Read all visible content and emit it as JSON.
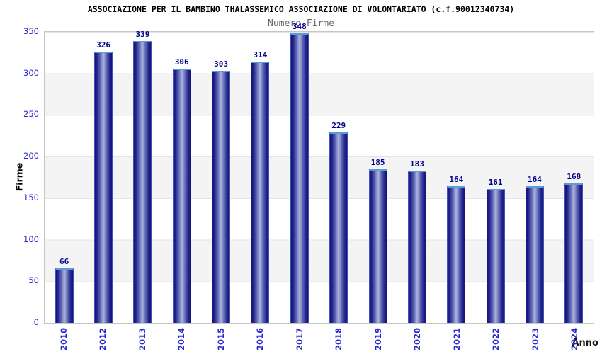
{
  "header": {
    "title": "ASSOCIAZIONE PER IL BAMBINO THALASSEMICO ASSOCIAZIONE DI VOLONTARIATO (c.f.90012340734)",
    "subtitle": "Numero Firme"
  },
  "chart_data": {
    "type": "bar",
    "title": "ASSOCIAZIONE PER IL BAMBINO THALASSEMICO ASSOCIAZIONE DI VOLONTARIATO (c.f.90012340734)",
    "subtitle": "Numero Firme",
    "categories": [
      "2010",
      "2012",
      "2013",
      "2014",
      "2015",
      "2016",
      "2017",
      "2018",
      "2019",
      "2020",
      "2021",
      "2022",
      "2023",
      "2024"
    ],
    "values": [
      66,
      326,
      339,
      306,
      303,
      314,
      348,
      229,
      185,
      183,
      164,
      161,
      164,
      168
    ],
    "xlabel": "Anno",
    "ylabel": "Firme",
    "ylim": [
      0,
      350
    ],
    "yticks": [
      0,
      50,
      100,
      150,
      200,
      250,
      300,
      350
    ],
    "grid": "horizontal-bands-alternating",
    "legend": "none",
    "colors": {
      "bar_edge": "#14147a",
      "bar_center": "#a7aedd",
      "bar_top_cap": "#5d9bd3",
      "bar_side_border": "#3a56b8",
      "value_label": "#00008c",
      "tick_label_blue": "#2a2ace",
      "band_gray": "#f4f4f4",
      "plot_border": "#c6c6c6",
      "subtitle_gray": "#666666",
      "title_black": "#000000"
    }
  }
}
